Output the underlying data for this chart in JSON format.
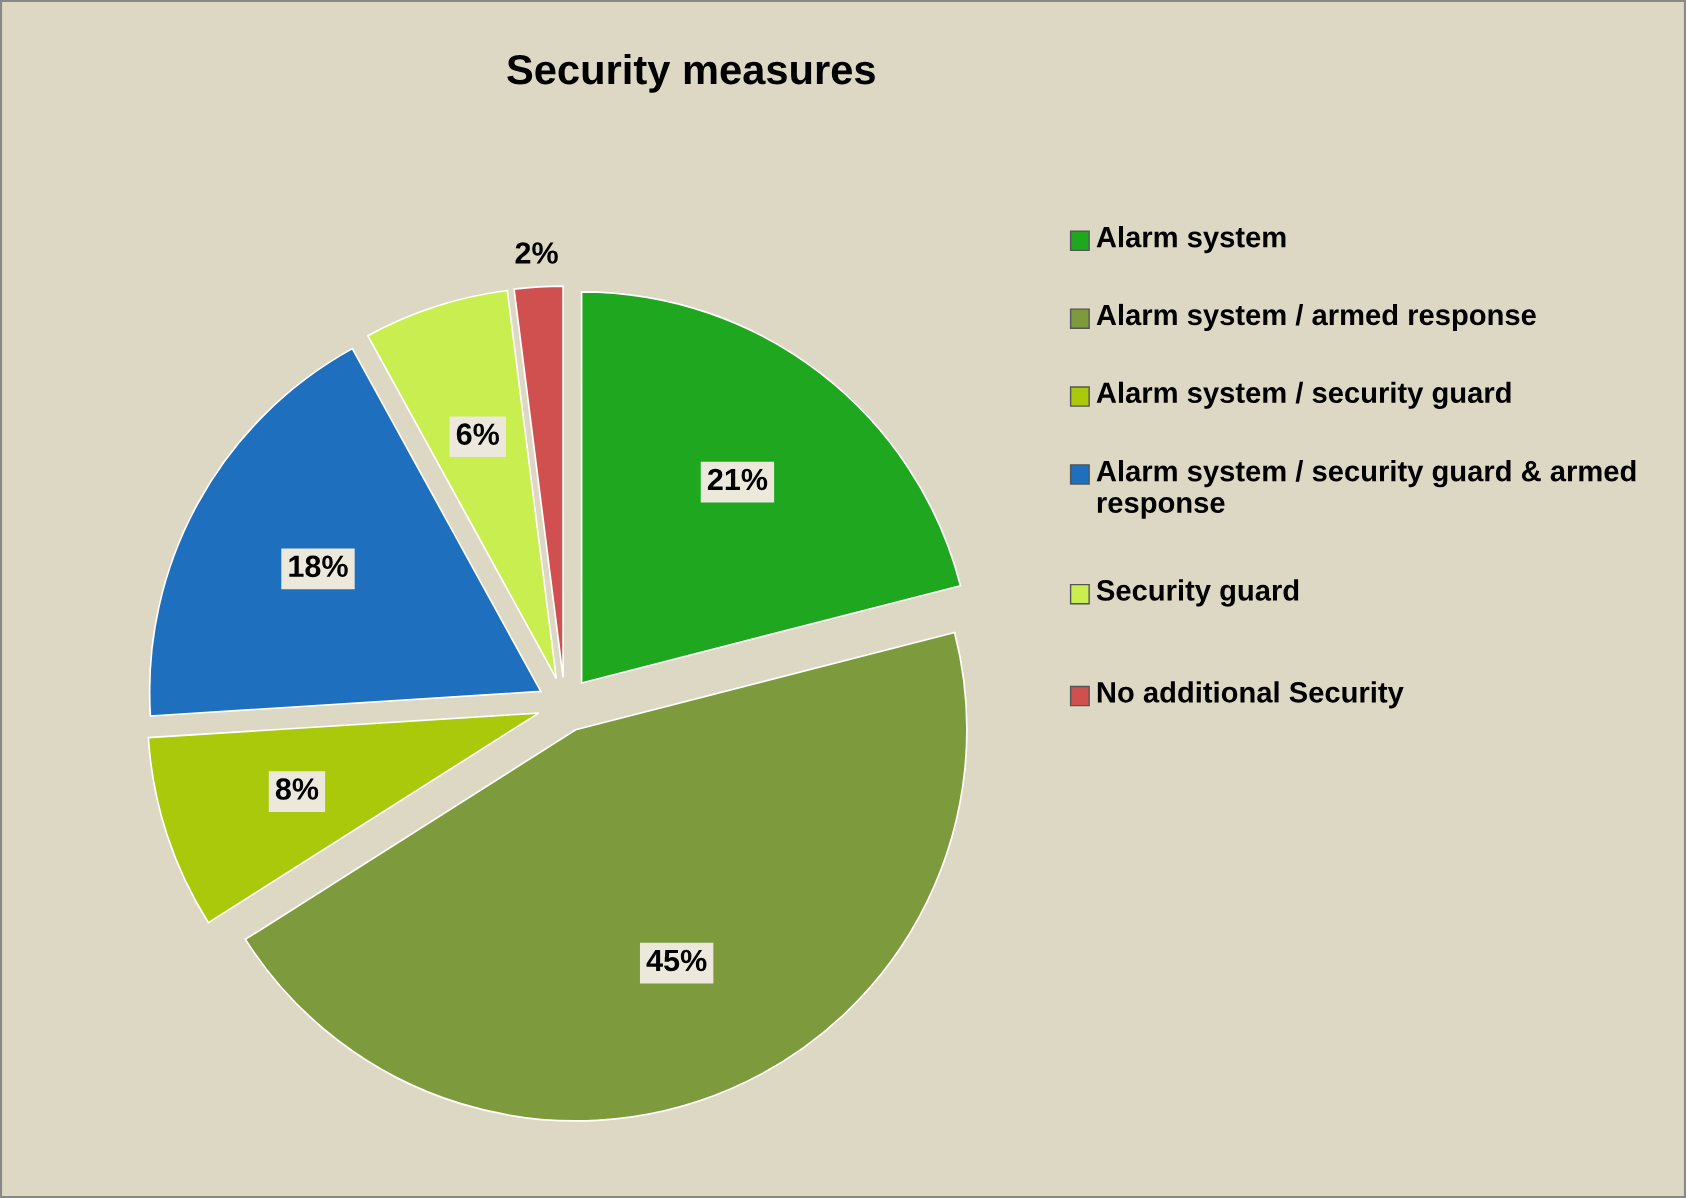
{
  "chart_data": {
    "type": "pie",
    "title": "Security measures",
    "categories": [
      "Alarm system",
      "Alarm system / armed response",
      "Alarm system / security guard",
      "Alarm system / security guard & armed response",
      "Security guard",
      "No additional Security"
    ],
    "values": [
      21,
      45,
      8,
      18,
      6,
      2
    ],
    "colors": [
      "#1fa81f",
      "#7d9b3c",
      "#a9c90a",
      "#1f6fbf",
      "#c8ef4f",
      "#d0504f"
    ],
    "value_labels": [
      "21%",
      "45%",
      "8%",
      "18%",
      "6%",
      "2%"
    ],
    "legend": "right"
  }
}
